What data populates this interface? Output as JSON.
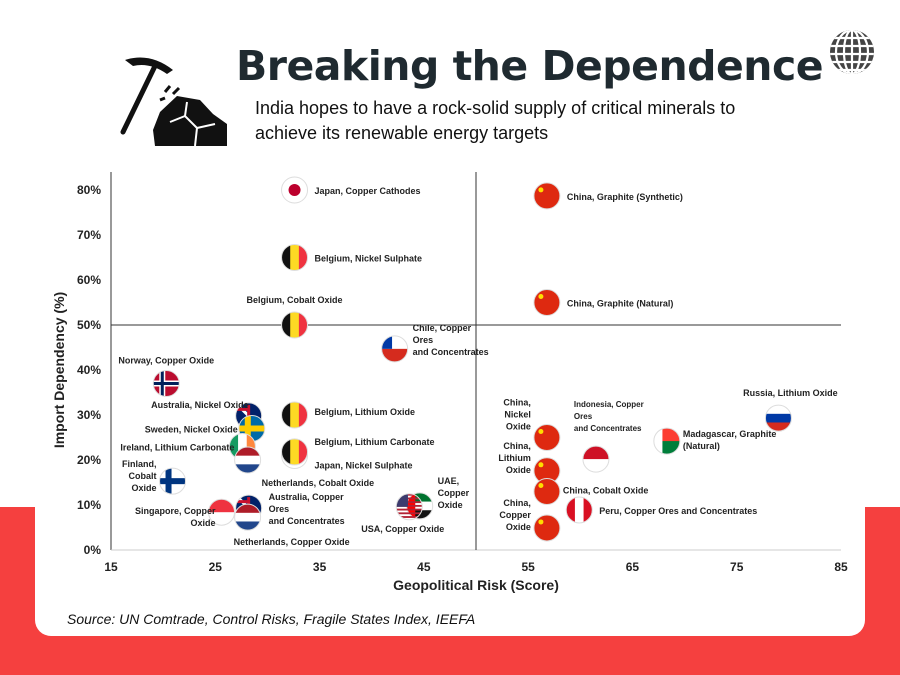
{
  "header": {
    "title": "Breaking the Dependence",
    "subtitle": "India hopes to have a rock-solid supply of critical minerals to achieve its renewable energy targets",
    "icon": "pickaxe-rock-icon",
    "logo": "globe-logo-icon"
  },
  "source": "Source: UN Comtrade, Control Risks, Fragile States Index, IEEFA",
  "colors": {
    "background_band": "#f5403f",
    "text": "#1f2a30"
  },
  "chart_data": {
    "type": "scatter",
    "xlabel": "Geopolitical Risk (Score)",
    "ylabel": "Import Dependency (%)",
    "xlim": [
      15,
      85
    ],
    "ylim": [
      0,
      80
    ],
    "xticks": [
      "15",
      "25",
      "35",
      "45",
      "55",
      "65",
      "75",
      "85"
    ],
    "yticks": [
      "0%",
      "10%",
      "20%",
      "30%",
      "40%",
      "50%",
      "60%",
      "70%",
      "80%"
    ],
    "quadrant_lines": {
      "x": 50,
      "y": 50
    },
    "grid": false,
    "points": [
      {
        "label": "Japan, Copper Cathodes",
        "country": "Japan",
        "x": 32.6,
        "y": 80
      },
      {
        "label": "Belgium, Nickel Sulphate",
        "country": "Belgium",
        "x": 32.6,
        "y": 65
      },
      {
        "label": "Belgium, Cobalt Oxide",
        "country": "Belgium",
        "x": 32.6,
        "y": 50
      },
      {
        "label": "Chile, Copper Ores and Concentrates",
        "country": "Chile",
        "x": 42.2,
        "y": 44.7
      },
      {
        "label": "Norway, Copper Oxide",
        "country": "Norway",
        "x": 20.3,
        "y": 37
      },
      {
        "label": "Australia, Nickel Oxide",
        "country": "Australia",
        "x": 28.2,
        "y": 29.8
      },
      {
        "label": "Sweden, Nickel Oxide",
        "country": "Sweden",
        "x": 28.5,
        "y": 27
      },
      {
        "label": "Ireland, Lithium Carbonate",
        "country": "Ireland",
        "x": 27.6,
        "y": 23
      },
      {
        "label": "Netherlands, Cobalt Oxide",
        "country": "Netherlands",
        "x": 28.1,
        "y": 20
      },
      {
        "label": "Belgium, Lithium Oxide",
        "country": "Belgium",
        "x": 32.6,
        "y": 30
      },
      {
        "label": "Japan, Nickel Sulphate",
        "country": "Japan",
        "x": 32.6,
        "y": 21
      },
      {
        "label": "Belgium, Lithium Carbonate",
        "country": "Belgium",
        "x": 32.6,
        "y": 21.8
      },
      {
        "label": "Finland, Cobalt Oxide",
        "country": "Finland",
        "x": 20.9,
        "y": 15.3
      },
      {
        "label": "Singapore, Copper Oxide",
        "country": "Singapore",
        "x": 25.6,
        "y": 8.4
      },
      {
        "label": "Australia, Copper Ores and Concentrates",
        "country": "Australia",
        "x": 28.2,
        "y": 9.3
      },
      {
        "label": "Netherlands, Copper Oxide",
        "country": "Netherlands",
        "x": 28.1,
        "y": 7.3
      },
      {
        "label": "UAE, Copper Oxide",
        "country": "UAE",
        "x": 44.6,
        "y": 9.8
      },
      {
        "label": "USA, Copper Oxide",
        "country": "USA",
        "x": 43.6,
        "y": 9.6
      },
      {
        "label": "China, Graphite (Synthetic)",
        "country": "China",
        "x": 56.8,
        "y": 78.7
      },
      {
        "label": "China, Graphite (Natural)",
        "country": "China",
        "x": 56.8,
        "y": 55
      },
      {
        "label": "China, Nickel Oxide",
        "country": "China",
        "x": 56.8,
        "y": 25
      },
      {
        "label": "Indonesia, Copper Ores and Concentrates",
        "country": "Indonesia",
        "x": 61.5,
        "y": 20.2
      },
      {
        "label": "China, Lithium Oxide",
        "country": "China",
        "x": 56.8,
        "y": 17.6
      },
      {
        "label": "China, Cobalt Oxide",
        "country": "China",
        "x": 56.8,
        "y": 13
      },
      {
        "label": "China, Copper Oxide",
        "country": "China",
        "x": 56.8,
        "y": 4.9
      },
      {
        "label": "Peru, Copper Ores and Concentrates",
        "country": "Peru",
        "x": 59.9,
        "y": 8.9
      },
      {
        "label": "Madagascar, Graphite (Natural)",
        "country": "Madagascar",
        "x": 68.3,
        "y": 24.2
      },
      {
        "label": "Russia, Lithium Oxide",
        "country": "Russia",
        "x": 79,
        "y": 29.3
      }
    ]
  }
}
